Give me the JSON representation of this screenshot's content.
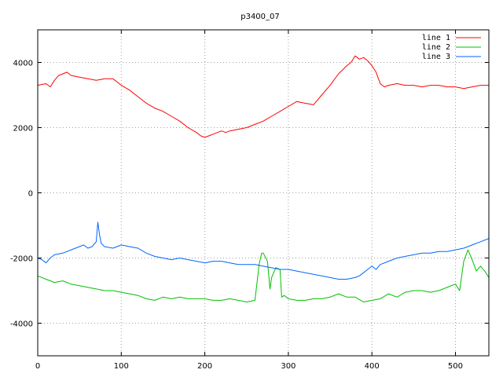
{
  "chart_data": {
    "type": "line",
    "title": "p3400_07",
    "xlabel": "",
    "ylabel": "",
    "xlim": [
      0,
      540
    ],
    "ylim": [
      -5000,
      5000
    ],
    "xticks": [
      0,
      100,
      200,
      300,
      400,
      500
    ],
    "yticks": [
      -4000,
      -2000,
      0,
      2000,
      4000
    ],
    "grid": true,
    "legend_position": "top-right",
    "series": [
      {
        "name": "line 1",
        "color": "#ff0000",
        "x": [
          0,
          10,
          15,
          20,
          25,
          30,
          35,
          40,
          50,
          60,
          70,
          80,
          90,
          95,
          100,
          110,
          120,
          130,
          140,
          150,
          160,
          170,
          180,
          190,
          195,
          200,
          205,
          210,
          220,
          225,
          230,
          240,
          250,
          260,
          270,
          280,
          290,
          300,
          310,
          320,
          330,
          340,
          350,
          360,
          370,
          375,
          380,
          385,
          390,
          395,
          400,
          405,
          410,
          415,
          420,
          430,
          440,
          450,
          460,
          470,
          480,
          490,
          500,
          510,
          520,
          530,
          540
        ],
        "y": [
          3300,
          3350,
          3250,
          3450,
          3600,
          3650,
          3700,
          3600,
          3550,
          3500,
          3450,
          3500,
          3500,
          3400,
          3300,
          3150,
          2950,
          2750,
          2600,
          2500,
          2350,
          2200,
          2000,
          1850,
          1750,
          1700,
          1750,
          1800,
          1900,
          1850,
          1900,
          1950,
          2000,
          2100,
          2200,
          2350,
          2500,
          2650,
          2800,
          2750,
          2700,
          3000,
          3300,
          3650,
          3900,
          4000,
          4200,
          4100,
          4150,
          4050,
          3900,
          3700,
          3350,
          3250,
          3300,
          3350,
          3300,
          3300,
          3250,
          3300,
          3300,
          3250,
          3250,
          3200,
          3250,
          3300,
          3300
        ]
      },
      {
        "name": "line 2",
        "color": "#00c000",
        "x": [
          0,
          10,
          20,
          30,
          40,
          50,
          60,
          70,
          80,
          90,
          100,
          110,
          120,
          130,
          140,
          150,
          160,
          170,
          180,
          190,
          200,
          210,
          220,
          230,
          240,
          250,
          260,
          265,
          268,
          270,
          275,
          278,
          280,
          285,
          290,
          292,
          295,
          300,
          310,
          320,
          330,
          340,
          350,
          360,
          370,
          380,
          390,
          400,
          410,
          420,
          430,
          440,
          450,
          460,
          470,
          480,
          490,
          500,
          505,
          510,
          515,
          520,
          525,
          530,
          535,
          540
        ],
        "y": [
          -2550,
          -2650,
          -2750,
          -2700,
          -2800,
          -2850,
          -2900,
          -2950,
          -3000,
          -3000,
          -3050,
          -3100,
          -3150,
          -3250,
          -3300,
          -3200,
          -3250,
          -3200,
          -3250,
          -3250,
          -3250,
          -3300,
          -3300,
          -3250,
          -3300,
          -3350,
          -3300,
          -2200,
          -1850,
          -1850,
          -2100,
          -2950,
          -2600,
          -2300,
          -2350,
          -3200,
          -3150,
          -3250,
          -3300,
          -3300,
          -3250,
          -3250,
          -3200,
          -3100,
          -3200,
          -3200,
          -3350,
          -3300,
          -3250,
          -3100,
          -3200,
          -3050,
          -3000,
          -3000,
          -3050,
          -3000,
          -2900,
          -2800,
          -3000,
          -2100,
          -1750,
          -2050,
          -2400,
          -2250,
          -2400,
          -2600
        ]
      },
      {
        "name": "line 3",
        "color": "#0066ff",
        "x": [
          0,
          5,
          10,
          15,
          20,
          30,
          40,
          50,
          55,
          60,
          65,
          70,
          72,
          74,
          76,
          80,
          90,
          100,
          110,
          120,
          130,
          140,
          150,
          160,
          170,
          180,
          190,
          200,
          210,
          220,
          230,
          240,
          250,
          260,
          270,
          280,
          290,
          300,
          310,
          320,
          330,
          340,
          350,
          360,
          370,
          380,
          385,
          390,
          395,
          400,
          405,
          410,
          420,
          430,
          440,
          450,
          460,
          470,
          480,
          490,
          500,
          510,
          520,
          530,
          540
        ],
        "y": [
          -2000,
          -2050,
          -2150,
          -2000,
          -1900,
          -1850,
          -1750,
          -1650,
          -1600,
          -1700,
          -1650,
          -1500,
          -900,
          -1300,
          -1550,
          -1650,
          -1700,
          -1600,
          -1650,
          -1700,
          -1850,
          -1950,
          -2000,
          -2050,
          -2000,
          -2050,
          -2100,
          -2150,
          -2100,
          -2100,
          -2150,
          -2200,
          -2200,
          -2200,
          -2250,
          -2300,
          -2350,
          -2350,
          -2400,
          -2450,
          -2500,
          -2550,
          -2600,
          -2650,
          -2650,
          -2600,
          -2550,
          -2450,
          -2350,
          -2250,
          -2350,
          -2200,
          -2100,
          -2000,
          -1950,
          -1900,
          -1850,
          -1850,
          -1800,
          -1800,
          -1750,
          -1700,
          -1600,
          -1500,
          -1400
        ]
      }
    ]
  }
}
